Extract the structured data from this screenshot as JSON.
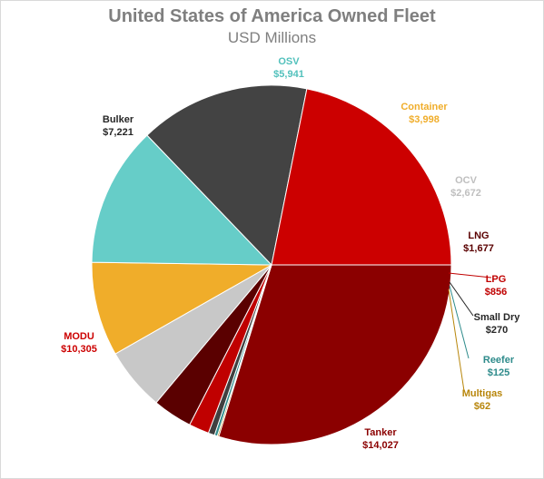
{
  "chart_data": {
    "type": "pie",
    "title": "United States of America Owned Fleet",
    "subtitle": "USD Millions",
    "start_category": "Tanker",
    "direction": "counterclockwise",
    "slices": [
      {
        "name": "Tanker",
        "value": 14027,
        "label": "$14,027",
        "color": "#8b0000",
        "label_color": "#8b0000"
      },
      {
        "name": "Multigas",
        "value": 62,
        "label": "$62",
        "color": "#b8860b",
        "label_color": "#b8860b"
      },
      {
        "name": "Reefer",
        "value": 125,
        "label": "$125",
        "color": "#2e8b8b",
        "label_color": "#2e8b8b"
      },
      {
        "name": "Small Dry",
        "value": 270,
        "label": "$270",
        "color": "#404040",
        "label_color": "#262626"
      },
      {
        "name": "LPG",
        "value": 856,
        "label": "$856",
        "color": "#c00000",
        "label_color": "#c00000"
      },
      {
        "name": "LNG",
        "value": 1677,
        "label": "$1,677",
        "color": "#5a0000",
        "label_color": "#5a0000"
      },
      {
        "name": "OCV",
        "value": 2672,
        "label": "$2,672",
        "color": "#c8c8c8",
        "label_color": "#bfbfbf"
      },
      {
        "name": "Container",
        "value": 3998,
        "label": "$3,998",
        "color": "#f0ad2a",
        "label_color": "#f0ad2a"
      },
      {
        "name": "OSV",
        "value": 5941,
        "label": "$5,941",
        "color": "#66cdc8",
        "label_color": "#52c1bc"
      },
      {
        "name": "Bulker",
        "value": 7221,
        "label": "$7,221",
        "color": "#434343",
        "label_color": "#262626"
      },
      {
        "name": "MODU",
        "value": 10305,
        "label": "$10,305",
        "color": "#cc0000",
        "label_color": "#cc0000"
      }
    ]
  }
}
